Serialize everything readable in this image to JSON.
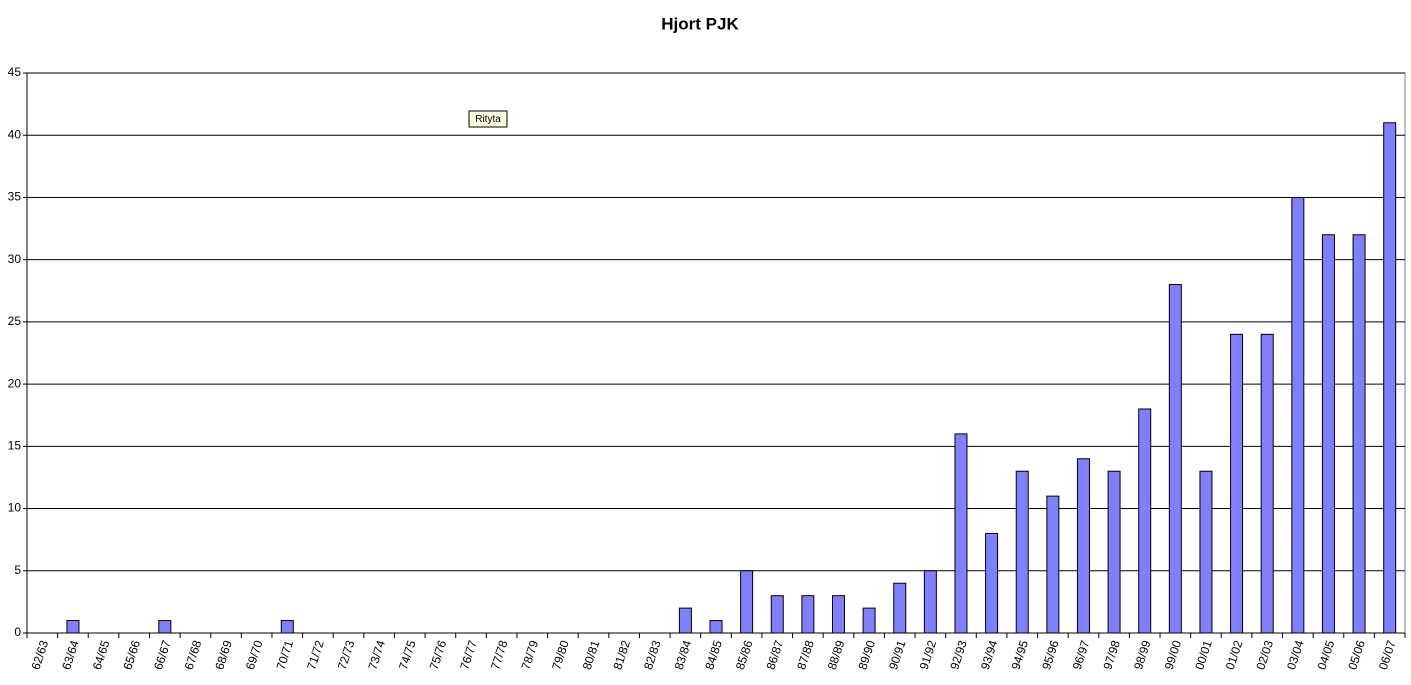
{
  "chart_data": {
    "type": "bar",
    "title": "Hjort   PJK",
    "categories": [
      "62/63",
      "63/64",
      "64/65",
      "65/66",
      "66/67",
      "67/68",
      "68/69",
      "69/70",
      "70/71",
      "71/72",
      "72/73",
      "73/74",
      "74/75",
      "75/76",
      "76/77",
      "77/78",
      "78/79",
      "79/80",
      "80/81",
      "81/82",
      "82/83",
      "83/84",
      "84/85",
      "85/86",
      "86/87",
      "87/88",
      "88/89",
      "89/90",
      "90/91",
      "91/92",
      "92/93",
      "93/94",
      "94/95",
      "95/96",
      "96/97",
      "97/98",
      "98/99",
      "99/00",
      "00/01",
      "01/02",
      "02/03",
      "03/04",
      "04/05",
      "05/06",
      "06/07"
    ],
    "values": [
      0,
      1,
      0,
      0,
      1,
      0,
      0,
      0,
      1,
      0,
      0,
      0,
      0,
      0,
      0,
      0,
      0,
      0,
      0,
      0,
      0,
      2,
      1,
      5,
      3,
      3,
      3,
      2,
      4,
      5,
      16,
      8,
      13,
      11,
      14,
      13,
      18,
      28,
      13,
      24,
      24,
      35,
      32,
      32,
      41
    ],
    "color": "#7f7fff",
    "ylim": [
      0,
      45
    ],
    "yticks": [
      0,
      5,
      10,
      15,
      20,
      25,
      30,
      35,
      40,
      45
    ],
    "grid": true
  },
  "tooltip": "Rityta"
}
